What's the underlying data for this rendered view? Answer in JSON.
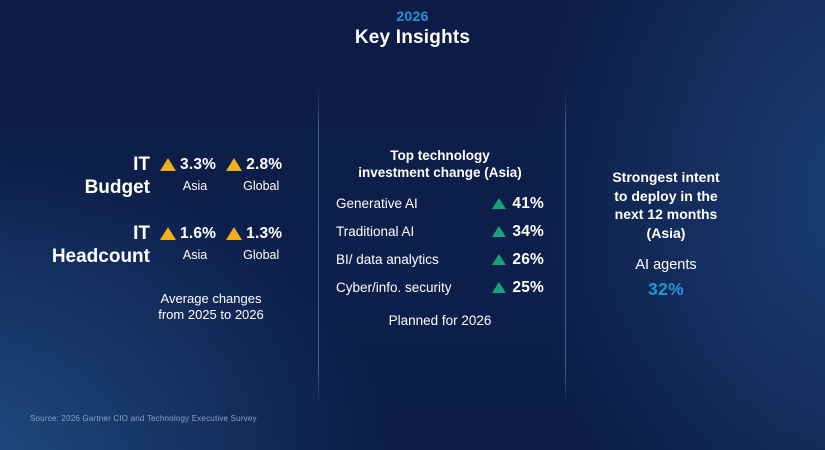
{
  "slide": {
    "year": "2026",
    "title": "Key Insights"
  },
  "left_panel": {
    "rows": [
      {
        "label_line1": "IT",
        "label_line2": "Budget",
        "metrics": [
          {
            "value": "3.3%",
            "region": "Asia"
          },
          {
            "value": "2.8%",
            "region": "Global"
          }
        ]
      },
      {
        "label_line1": "IT",
        "label_line2": "Headcount",
        "metrics": [
          {
            "value": "1.6%",
            "region": "Asia"
          },
          {
            "value": "1.3%",
            "region": "Global"
          }
        ]
      }
    ],
    "caption_lines": [
      "Average changes",
      "from 2025 to 2026"
    ]
  },
  "middle_panel": {
    "heading_lines": [
      "Top technology",
      "investment change (Asia)"
    ],
    "rows": [
      {
        "label": "Generative AI",
        "value": "41%"
      },
      {
        "label": "Traditional AI",
        "value": "34%"
      },
      {
        "label": "BI/ data analytics",
        "value": "26%"
      },
      {
        "label": "Cyber/info. security",
        "value": "25%"
      }
    ],
    "footer": "Planned for 2026"
  },
  "right_panel": {
    "heading_lines": [
      "Strongest intent",
      "to deploy in the",
      "next 12 months",
      "(Asia)"
    ],
    "item_label": "AI agents",
    "item_value": "32%"
  },
  "source": "Source: 2026 Gartner CIO and Technology Executive Survey",
  "colors": {
    "accent_blue": "#1f97d4",
    "increase_yellow": "#f2af1d",
    "increase_green": "#16a377"
  }
}
